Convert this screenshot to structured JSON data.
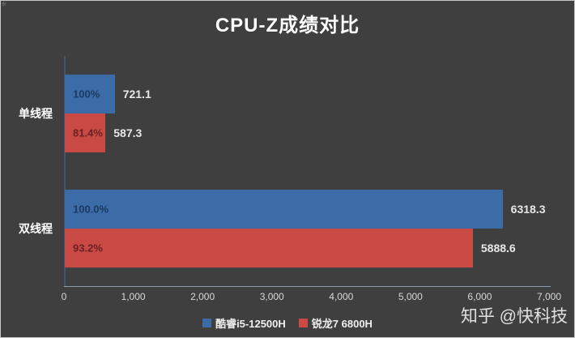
{
  "title": "CPU-Z成绩对比",
  "watermark": "知乎 @快科技",
  "corner_icon": "✳",
  "colors": {
    "background": "#3F3F3F",
    "border": "#C9C9C9",
    "title_text": "#FFFFFF",
    "axis_vertical": "#44546A",
    "axis_horizontal": "#8A9AAE",
    "tick_text": "#D8D8D8",
    "category_text": "#FFFFFF",
    "value_text": "#E8E8E8",
    "legend_text": "#F0F0F0",
    "watermark_text": "#E0E0E0"
  },
  "chart_data": {
    "type": "bar",
    "orientation": "horizontal",
    "title": "CPU-Z成绩对比",
    "categories": [
      "单线程",
      "双线程"
    ],
    "series": [
      {
        "name": "酷睿i5-12500H",
        "color": "#3C6CA8",
        "label_color": "#1B3A5E",
        "values": [
          721.1,
          6318.3
        ],
        "value_labels": [
          "721.1",
          "6318.3"
        ],
        "percent_labels": [
          "100%",
          "100.0%"
        ]
      },
      {
        "name": "锐龙7 6800H",
        "color": "#C94A45",
        "label_color": "#6B2120",
        "values": [
          587.3,
          5888.6
        ],
        "value_labels": [
          "587.3",
          "5888.6"
        ],
        "percent_labels": [
          "81.4%",
          "93.2%"
        ]
      }
    ],
    "xlim": [
      0,
      7000
    ],
    "x_ticks": [
      0,
      1000,
      2000,
      3000,
      4000,
      5000,
      6000,
      7000
    ],
    "x_tick_labels": [
      "0",
      "1,000",
      "2,000",
      "3,000",
      "4,000",
      "5,000",
      "6,000",
      "7,000"
    ],
    "legend_position": "bottom",
    "grid": false
  },
  "legend": {
    "items": [
      {
        "label": "酷睿i5-12500H",
        "color": "#3C6CA8"
      },
      {
        "label": "锐龙7 6800H",
        "color": "#C94A45"
      }
    ]
  }
}
